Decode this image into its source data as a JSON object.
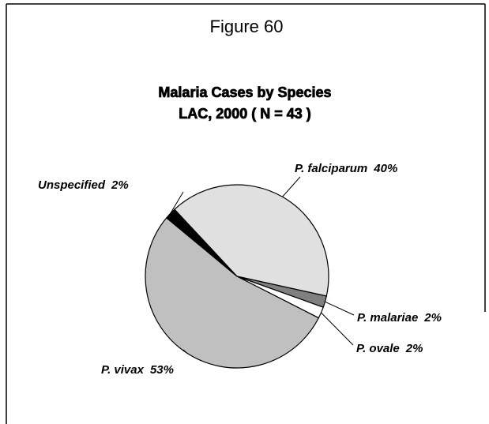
{
  "chart_data": {
    "type": "pie",
    "figure_label": "Figure 60",
    "title": "Malaria Cases by Species",
    "subtitle": "LAC, 2000  ( N = 43 )",
    "categories": [
      "P. falciparum",
      "P. malariae",
      "P. ovale",
      "P. vivax",
      "Unspecified"
    ],
    "values": [
      40,
      2,
      2,
      53,
      2
    ],
    "value_labels": [
      "40%",
      "2%",
      "2%",
      "53%",
      "2%"
    ],
    "colors": [
      "#e0e0e0",
      "#808080",
      "#ffffff",
      "#c0c0c0",
      "#000000"
    ]
  }
}
